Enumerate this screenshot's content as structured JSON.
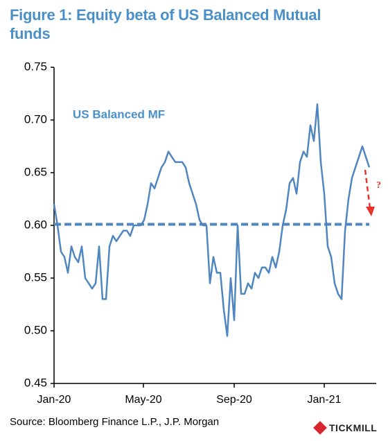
{
  "chart_data": {
    "type": "line",
    "title": "Figure 1: Equity beta of US Balanced Mutual funds",
    "source": "Source:  Bloomberg Finance L.P., J.P. Morgan",
    "logo": "TICKMILL",
    "annotation": "US Balanced MF",
    "forecast_mark": "?",
    "series": [
      {
        "name": "US Balanced MF",
        "color": "#4f86c0",
        "values": [
          0.62,
          0.6,
          0.575,
          0.57,
          0.555,
          0.58,
          0.57,
          0.565,
          0.58,
          0.55,
          0.545,
          0.54,
          0.545,
          0.58,
          0.53,
          0.53,
          0.58,
          0.59,
          0.585,
          0.59,
          0.595,
          0.595,
          0.59,
          0.6,
          0.6,
          0.6,
          0.605,
          0.62,
          0.64,
          0.635,
          0.645,
          0.655,
          0.66,
          0.67,
          0.665,
          0.66,
          0.66,
          0.66,
          0.655,
          0.64,
          0.63,
          0.62,
          0.605,
          0.6,
          0.6,
          0.545,
          0.57,
          0.555,
          0.555,
          0.52,
          0.495,
          0.55,
          0.51,
          0.6,
          0.535,
          0.535,
          0.545,
          0.54,
          0.555,
          0.55,
          0.56,
          0.56,
          0.555,
          0.57,
          0.56,
          0.575,
          0.6,
          0.615,
          0.64,
          0.645,
          0.63,
          0.66,
          0.67,
          0.665,
          0.695,
          0.68,
          0.715,
          0.66,
          0.63,
          0.58,
          0.57,
          0.545,
          0.535,
          0.53,
          0.595,
          0.625,
          0.645,
          0.655,
          0.665,
          0.675,
          0.665,
          0.655
        ]
      }
    ],
    "hline": {
      "value": 0.601,
      "color": "#4f86c0"
    },
    "xlim": [
      0,
      93
    ],
    "xticks": [
      {
        "value": 0,
        "label": "Jan-20"
      },
      {
        "value": 25.8,
        "label": "May-20"
      },
      {
        "value": 52,
        "label": "Sep-20"
      },
      {
        "value": 78,
        "label": "Jan-21"
      }
    ],
    "ylim": [
      0.45,
      0.75
    ],
    "yticks": [
      0.75,
      {
        "value": 0.7,
        "label": "0.70"
      },
      0.65,
      {
        "value": 0.6,
        "label": "0.60"
      },
      0.55,
      {
        "value": 0.5,
        "label": "0.50"
      },
      0.45
    ],
    "grid": false
  }
}
